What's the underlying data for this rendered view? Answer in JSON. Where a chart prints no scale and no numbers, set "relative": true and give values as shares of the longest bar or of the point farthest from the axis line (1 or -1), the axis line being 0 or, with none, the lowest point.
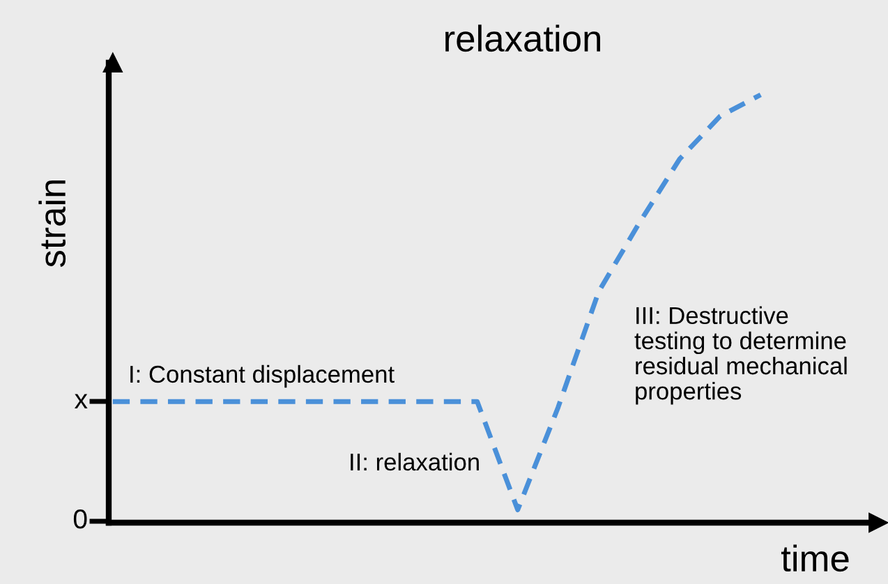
{
  "chart_data": {
    "type": "line",
    "title": "relaxation",
    "xlabel": "time",
    "ylabel": "strain",
    "relative": true,
    "categories": [
      null,
      null,
      null,
      null,
      null,
      null,
      null,
      null,
      null,
      null,
      null,
      null,
      null,
      null,
      null,
      null,
      null
    ],
    "series": [
      {
        "color": "#4a90d9",
        "values": [
          0.283,
          0.283,
          0.283,
          0.283,
          0.283,
          0.283,
          0.283,
          0.283,
          0.283,
          0.283,
          0.03,
          0.27,
          0.54,
          0.7,
          0.85,
          0.95,
          1
        ]
      }
    ],
    "line_style": "dashed",
    "marker": "none",
    "grid": false,
    "legend": false,
    "annotations": [
      "0",
      "x",
      "I: Constant displacement",
      "II: relaxation",
      "III: Destructive\ntesting to determine\nresidual mechanical\nproperties"
    ]
  }
}
